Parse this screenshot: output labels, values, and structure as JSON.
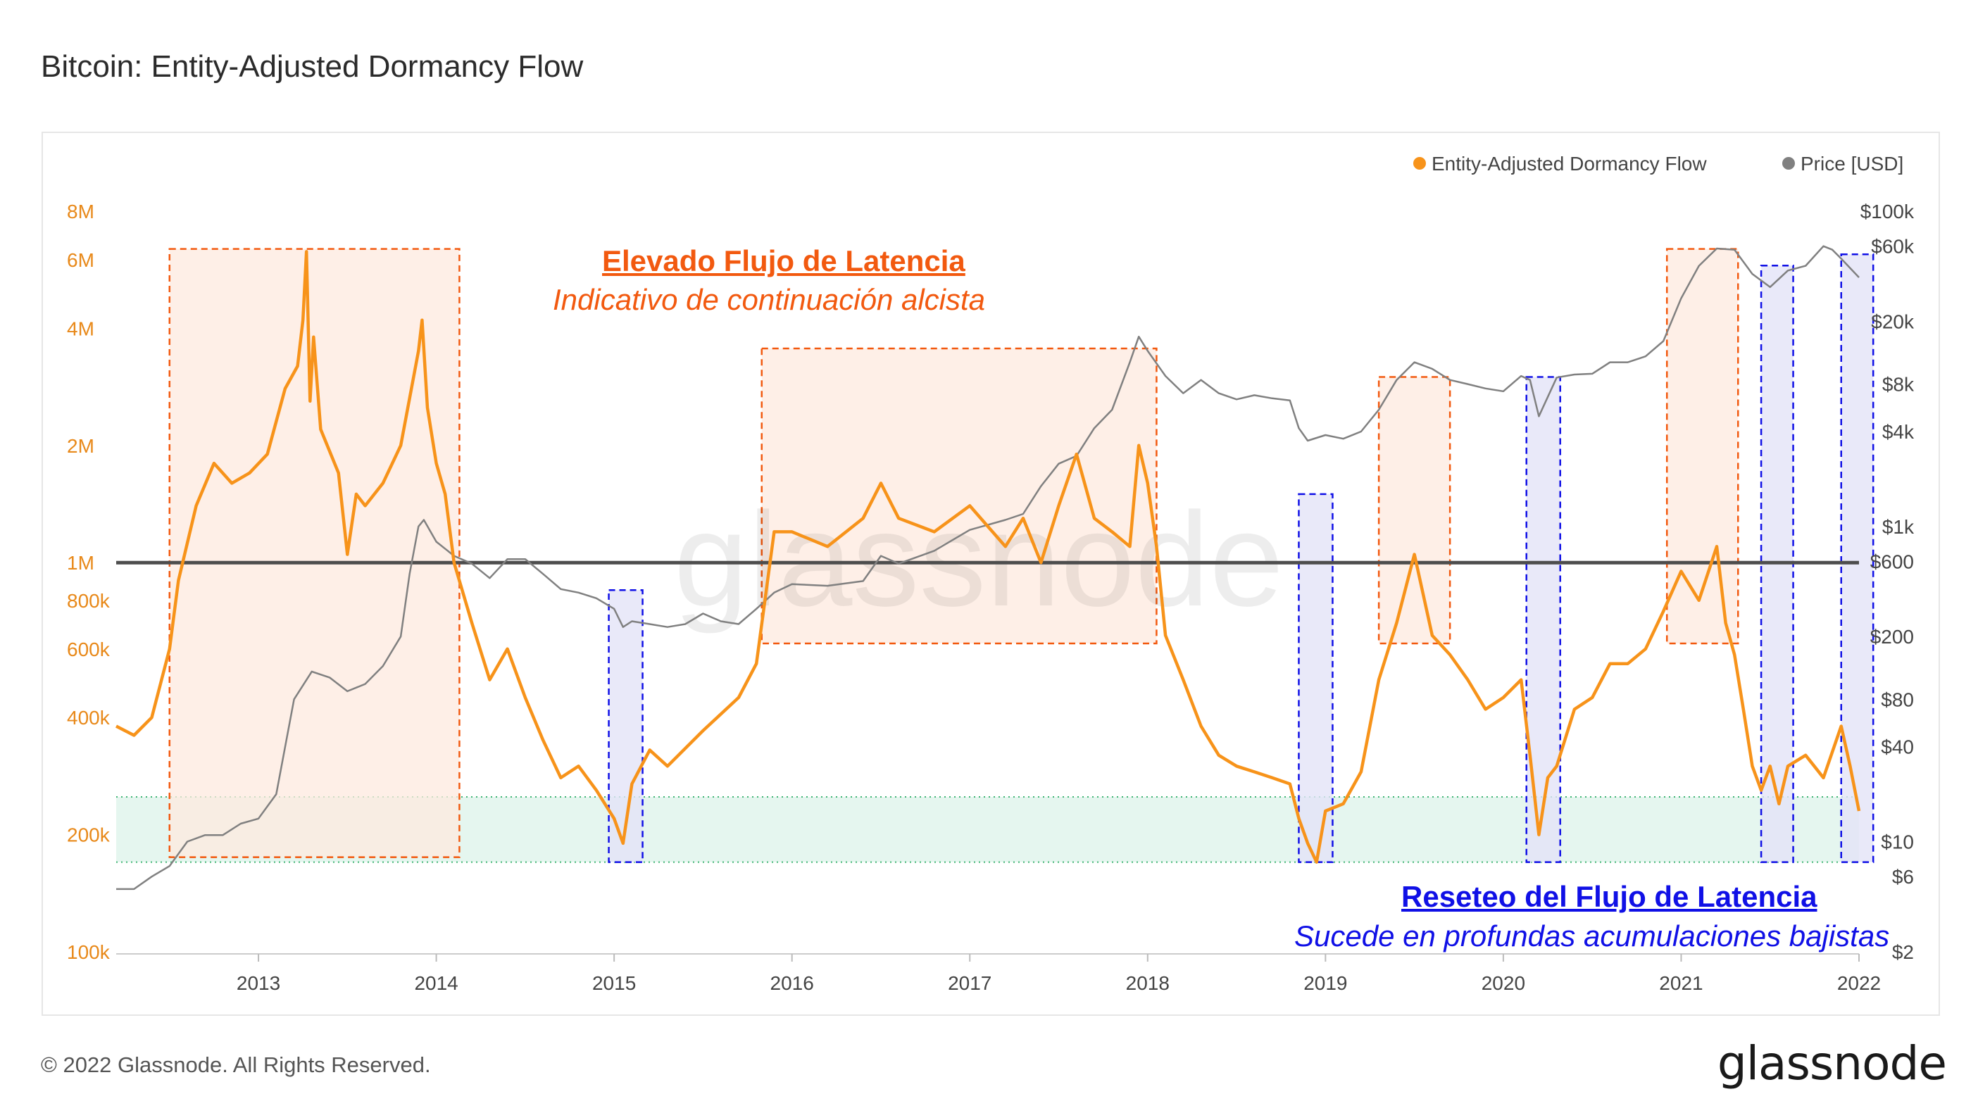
{
  "title": "Bitcoin: Entity-Adjusted Dormancy Flow",
  "footer": "© 2022 Glassnode. All Rights Reserved.",
  "brand": "glassnode",
  "watermark": "glassnode",
  "annotations": {
    "bullish_heading": "Elevado Flujo de Latencia",
    "bullish_sub": "Indicativo de continuación alcista",
    "reset_heading": "Reseteo del Flujo de Latencia",
    "reset_sub": "Sucede en profundas acumulaciones bajistas"
  },
  "colors": {
    "dormancy": "#f7931a",
    "price": "#808080",
    "threshold": "#4d4d4d",
    "high_zone_fill": "#fde9df",
    "high_zone_border": "#f2590f",
    "reset_zone_fill": "#e3e3f7",
    "reset_zone_border": "#1010e6",
    "low_band_fill": "#e5f6ef",
    "low_band_border": "#3cb371"
  },
  "chart_data": {
    "type": "line",
    "title": "Bitcoin: Entity-Adjusted Dormancy Flow",
    "legend": [
      "Entity-Adjusted Dormancy Flow",
      "Price [USD]"
    ],
    "legend_position": "top-right",
    "x_ticks": [
      "2013",
      "2014",
      "2015",
      "2016",
      "2017",
      "2018",
      "2019",
      "2020",
      "2021",
      "2022"
    ],
    "x_range": [
      2012.2,
      2022.0
    ],
    "y_left": {
      "scale": "log",
      "range": [
        100000,
        8000000
      ],
      "ticks": [
        {
          "label": "8M",
          "value": 8000000
        },
        {
          "label": "6M",
          "value": 6000000
        },
        {
          "label": "4M",
          "value": 4000000
        },
        {
          "label": "2M",
          "value": 2000000
        },
        {
          "label": "1M",
          "value": 1000000
        },
        {
          "label": "800k",
          "value": 800000
        },
        {
          "label": "600k",
          "value": 600000
        },
        {
          "label": "400k",
          "value": 400000
        },
        {
          "label": "200k",
          "value": 200000
        },
        {
          "label": "100k",
          "value": 100000
        }
      ]
    },
    "y_right": {
      "scale": "log",
      "range": [
        2,
        100000
      ],
      "ticks": [
        {
          "label": "$100k",
          "value": 100000
        },
        {
          "label": "$60k",
          "value": 60000
        },
        {
          "label": "$20k",
          "value": 20000
        },
        {
          "label": "$8k",
          "value": 8000
        },
        {
          "label": "$4k",
          "value": 4000
        },
        {
          "label": "$1k",
          "value": 1000
        },
        {
          "label": "$600",
          "value": 600
        },
        {
          "label": "$200",
          "value": 200
        },
        {
          "label": "$80",
          "value": 80
        },
        {
          "label": "$40",
          "value": 40
        },
        {
          "label": "$10",
          "value": 10
        },
        {
          "label": "$6",
          "value": 6
        },
        {
          "label": "$2",
          "value": 2
        }
      ]
    },
    "threshold_level": 1000000,
    "low_band": [
      170000,
      250000
    ],
    "high_zones": [
      [
        2012.5,
        2014.13
      ],
      [
        2015.83,
        2018.05
      ],
      [
        2019.3,
        2019.7
      ],
      [
        2020.92,
        2021.32
      ]
    ],
    "reset_zones": [
      [
        2014.97,
        2015.16
      ],
      [
        2018.85,
        2019.04
      ],
      [
        2020.13,
        2020.32
      ],
      [
        2021.45,
        2021.63
      ],
      [
        2021.9,
        2022.08
      ]
    ],
    "series": [
      {
        "name": "Entity-Adjusted Dormancy Flow",
        "x": [
          2012.2,
          2012.3,
          2012.4,
          2012.5,
          2012.55,
          2012.65,
          2012.75,
          2012.85,
          2012.95,
          2013.05,
          2013.15,
          2013.22,
          2013.25,
          2013.27,
          2013.29,
          2013.31,
          2013.35,
          2013.45,
          2013.5,
          2013.55,
          2013.6,
          2013.7,
          2013.8,
          2013.9,
          2013.92,
          2013.95,
          2014.0,
          2014.05,
          2014.1,
          2014.2,
          2014.3,
          2014.4,
          2014.5,
          2014.6,
          2014.7,
          2014.8,
          2014.9,
          2015.0,
          2015.05,
          2015.1,
          2015.2,
          2015.3,
          2015.5,
          2015.7,
          2015.8,
          2015.9,
          2016.0,
          2016.2,
          2016.4,
          2016.5,
          2016.6,
          2016.8,
          2017.0,
          2017.2,
          2017.3,
          2017.4,
          2017.5,
          2017.6,
          2017.7,
          2017.8,
          2017.9,
          2017.95,
          2018.0,
          2018.05,
          2018.1,
          2018.2,
          2018.3,
          2018.4,
          2018.5,
          2018.6,
          2018.7,
          2018.8,
          2018.85,
          2018.9,
          2018.95,
          2019.0,
          2019.1,
          2019.2,
          2019.3,
          2019.4,
          2019.5,
          2019.6,
          2019.7,
          2019.8,
          2019.9,
          2020.0,
          2020.1,
          2020.15,
          2020.2,
          2020.25,
          2020.3,
          2020.4,
          2020.5,
          2020.6,
          2020.7,
          2020.8,
          2020.9,
          2021.0,
          2021.1,
          2021.2,
          2021.25,
          2021.3,
          2021.35,
          2021.4,
          2021.45,
          2021.5,
          2021.55,
          2021.6,
          2021.7,
          2021.8,
          2021.9,
          2021.95,
          2022.0
        ],
        "y": [
          380000,
          360000,
          400000,
          600000,
          900000,
          1400000,
          1800000,
          1600000,
          1700000,
          1900000,
          2800000,
          3200000,
          4200000,
          6300000,
          2600000,
          3800000,
          2200000,
          1700000,
          1050000,
          1500000,
          1400000,
          1600000,
          2000000,
          3500000,
          4200000,
          2500000,
          1800000,
          1500000,
          1000000,
          700000,
          500000,
          600000,
          450000,
          350000,
          280000,
          300000,
          260000,
          220000,
          190000,
          270000,
          330000,
          300000,
          370000,
          450000,
          550000,
          1200000,
          1200000,
          1100000,
          1300000,
          1600000,
          1300000,
          1200000,
          1400000,
          1100000,
          1300000,
          1000000,
          1400000,
          1900000,
          1300000,
          1200000,
          1100000,
          2000000,
          1600000,
          1100000,
          650000,
          500000,
          380000,
          320000,
          300000,
          290000,
          280000,
          270000,
          220000,
          190000,
          170000,
          230000,
          240000,
          290000,
          500000,
          700000,
          1050000,
          650000,
          580000,
          500000,
          420000,
          450000,
          500000,
          320000,
          200000,
          280000,
          300000,
          420000,
          450000,
          550000,
          550000,
          600000,
          750000,
          950000,
          800000,
          1100000,
          700000,
          580000,
          420000,
          300000,
          260000,
          300000,
          240000,
          300000,
          320000,
          280000,
          380000,
          300000,
          230000
        ]
      },
      {
        "name": "Price [USD]",
        "x": [
          2012.2,
          2012.3,
          2012.4,
          2012.5,
          2012.6,
          2012.7,
          2012.8,
          2012.9,
          2013.0,
          2013.1,
          2013.2,
          2013.3,
          2013.4,
          2013.5,
          2013.6,
          2013.7,
          2013.8,
          2013.85,
          2013.9,
          2013.93,
          2014.0,
          2014.1,
          2014.2,
          2014.3,
          2014.4,
          2014.5,
          2014.6,
          2014.7,
          2014.8,
          2014.9,
          2015.0,
          2015.05,
          2015.1,
          2015.2,
          2015.3,
          2015.4,
          2015.5,
          2015.6,
          2015.7,
          2015.8,
          2015.9,
          2016.0,
          2016.2,
          2016.4,
          2016.5,
          2016.6,
          2016.8,
          2017.0,
          2017.2,
          2017.3,
          2017.4,
          2017.5,
          2017.6,
          2017.7,
          2017.8,
          2017.9,
          2017.95,
          2018.0,
          2018.1,
          2018.2,
          2018.3,
          2018.4,
          2018.5,
          2018.6,
          2018.7,
          2018.8,
          2018.85,
          2018.9,
          2019.0,
          2019.1,
          2019.2,
          2019.3,
          2019.4,
          2019.5,
          2019.6,
          2019.7,
          2019.8,
          2019.9,
          2020.0,
          2020.1,
          2020.15,
          2020.2,
          2020.3,
          2020.4,
          2020.5,
          2020.6,
          2020.7,
          2020.8,
          2020.9,
          2021.0,
          2021.1,
          2021.2,
          2021.3,
          2021.4,
          2021.5,
          2021.6,
          2021.7,
          2021.8,
          2021.85,
          2021.9,
          2022.0
        ],
        "y": [
          5,
          5,
          6,
          7,
          10,
          11,
          11,
          13,
          14,
          20,
          80,
          120,
          110,
          90,
          100,
          130,
          200,
          500,
          1000,
          1100,
          800,
          650,
          580,
          470,
          620,
          620,
          500,
          400,
          380,
          350,
          300,
          230,
          250,
          240,
          230,
          240,
          280,
          250,
          240,
          300,
          380,
          430,
          420,
          450,
          650,
          580,
          700,
          950,
          1100,
          1200,
          1800,
          2500,
          2800,
          4200,
          5500,
          11000,
          16000,
          13000,
          9000,
          7000,
          8500,
          7000,
          6400,
          6800,
          6500,
          6300,
          4200,
          3500,
          3800,
          3600,
          4000,
          5500,
          8500,
          11000,
          10000,
          8500,
          8000,
          7500,
          7200,
          9000,
          8500,
          5000,
          8800,
          9200,
          9300,
          11000,
          11000,
          12000,
          15000,
          28000,
          45000,
          58000,
          57000,
          40000,
          33000,
          42000,
          45000,
          60000,
          57000,
          50000,
          38000
        ]
      }
    ]
  }
}
